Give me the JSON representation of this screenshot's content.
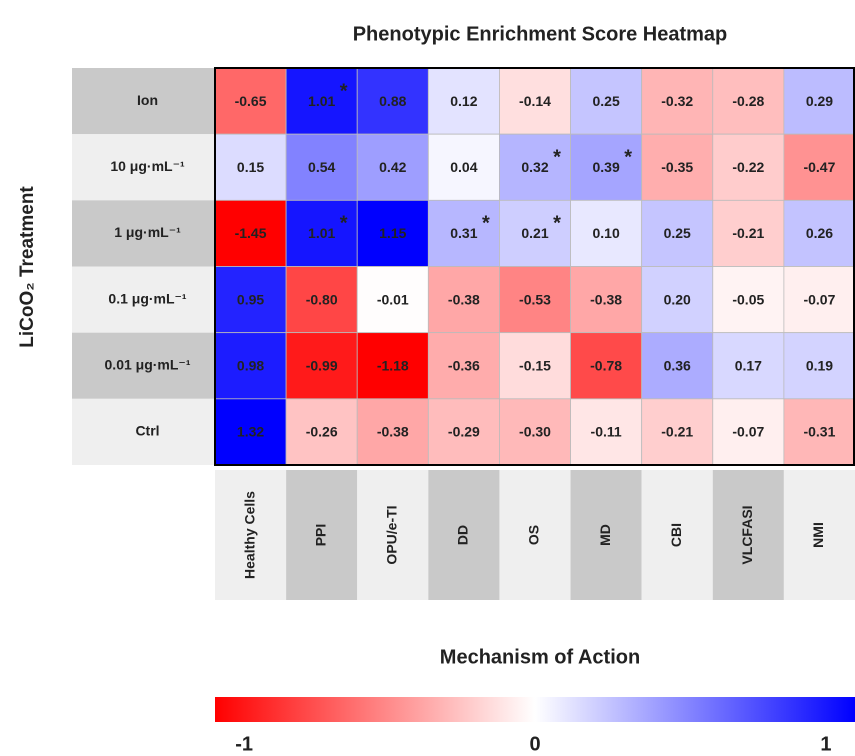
{
  "chart_data": {
    "type": "heatmap",
    "title": "Phenotypic Enrichment Score Heatmap",
    "x_label": "Mechanism of Action",
    "y_label": "LiCoO₂ Treatment",
    "rows": [
      "Ion",
      "10 μg·mL⁻¹",
      "1 μg·mL⁻¹",
      "0.1 μg·mL⁻¹",
      "0.01 μg·mL⁻¹",
      "Ctrl"
    ],
    "columns": [
      "Healthy Cells",
      "PPI",
      "OPU/e-TI",
      "DD",
      "OS",
      "MD",
      "CBI",
      "VLCFASI",
      "NMI"
    ],
    "values": [
      [
        -0.65,
        1.01,
        0.88,
        0.12,
        -0.14,
        0.25,
        -0.32,
        -0.28,
        0.29
      ],
      [
        0.15,
        0.54,
        0.42,
        0.04,
        0.32,
        0.39,
        -0.35,
        -0.22,
        -0.47
      ],
      [
        -1.45,
        1.01,
        1.15,
        0.31,
        0.21,
        0.1,
        0.25,
        -0.21,
        0.26
      ],
      [
        0.95,
        -0.8,
        -0.01,
        -0.38,
        -0.53,
        -0.38,
        0.2,
        -0.05,
        -0.07
      ],
      [
        0.98,
        -0.99,
        -1.18,
        -0.36,
        -0.15,
        -0.78,
        0.36,
        0.17,
        0.19
      ],
      [
        1.32,
        -0.26,
        -0.38,
        -0.29,
        -0.3,
        -0.11,
        -0.21,
        -0.07,
        -0.31
      ]
    ],
    "value_labels": [
      [
        "-0.65",
        "1.01",
        "0.88",
        "0.12",
        "-0.14",
        "0.25",
        "-0.32",
        "-0.28",
        "0.29"
      ],
      [
        "0.15",
        "0.54",
        "0.42",
        "0.04",
        "0.32",
        "0.39",
        "-0.35",
        "-0.22",
        "-0.47"
      ],
      [
        "-1.45",
        "1.01",
        "1.15",
        "0.31",
        "0.21",
        "0.10",
        "0.25",
        "-0.21",
        "0.26"
      ],
      [
        "0.95",
        "-0.80",
        "-0.01",
        "-0.38",
        "-0.53",
        "-0.38",
        "0.20",
        "-0.05",
        "-0.07"
      ],
      [
        "0.98",
        "-0.99",
        "-1.18",
        "-0.36",
        "-0.15",
        "-0.78",
        "0.36",
        "0.17",
        "0.19"
      ],
      [
        "1.32",
        "-0.26",
        "-0.38",
        "-0.29",
        "-0.30",
        "-0.11",
        "-0.21",
        "-0.07",
        "-0.31"
      ]
    ],
    "markers": [
      [
        null,
        "*",
        null,
        null,
        null,
        null,
        null,
        null,
        null
      ],
      [
        null,
        null,
        null,
        null,
        "*",
        "*",
        null,
        null,
        null
      ],
      [
        null,
        "*",
        null,
        "*",
        "*",
        null,
        null,
        null,
        null
      ],
      [
        null,
        null,
        null,
        null,
        null,
        null,
        null,
        null,
        null
      ],
      [
        null,
        null,
        null,
        null,
        null,
        null,
        null,
        null,
        null
      ],
      [
        null,
        null,
        null,
        null,
        null,
        null,
        null,
        null,
        null
      ]
    ],
    "colormap": [
      "#ff0000",
      "#ffffff",
      "#0000ff"
    ],
    "clim": [
      -1.1,
      1.1
    ],
    "cticks": [
      -1,
      0,
      1
    ]
  }
}
